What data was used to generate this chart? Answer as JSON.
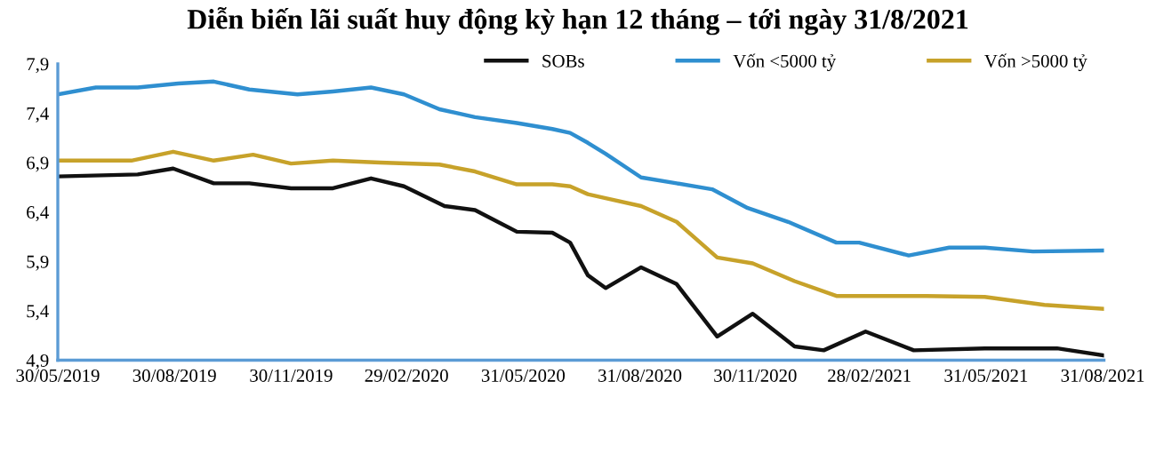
{
  "chart_data": {
    "type": "line",
    "title": "Diễn biến lãi suất huy động kỳ hạn 12 tháng – tới ngày 31/8/2021",
    "series": [
      {
        "name": "SOBs",
        "color": "#111111",
        "x": [
          "2019-05-30",
          "2019-08-01",
          "2019-08-29",
          "2019-09-30",
          "2019-10-28",
          "2019-11-30",
          "2020-01-02",
          "2020-02-01",
          "2020-02-27",
          "2020-03-30",
          "2020-04-23",
          "2020-05-26",
          "2020-06-23",
          "2020-07-07",
          "2020-07-21",
          "2020-08-04",
          "2020-09-01",
          "2020-09-29",
          "2020-10-31",
          "2020-11-28",
          "2020-12-31",
          "2021-01-23",
          "2021-02-25",
          "2021-04-04",
          "2021-05-30",
          "2021-07-26",
          "2021-08-31"
        ],
        "values": [
          6.76,
          6.78,
          6.84,
          6.69,
          6.69,
          6.64,
          6.64,
          6.74,
          6.66,
          6.46,
          6.42,
          6.2,
          6.19,
          6.09,
          5.76,
          5.63,
          5.84,
          5.67,
          5.14,
          5.37,
          5.04,
          5.0,
          5.19,
          5.0,
          5.02,
          5.02,
          4.95
        ]
      },
      {
        "name": "Vốn <5000 tỷ",
        "color": "#2f8fd0",
        "x": [
          "2019-05-30",
          "2019-06-29",
          "2019-08-01",
          "2019-09-02",
          "2019-09-30",
          "2019-10-28",
          "2019-12-05",
          "2020-01-02",
          "2020-02-01",
          "2020-02-27",
          "2020-03-26",
          "2020-04-23",
          "2020-05-26",
          "2020-06-23",
          "2020-07-07",
          "2020-07-21",
          "2020-08-04",
          "2020-09-01",
          "2020-09-29",
          "2020-10-27",
          "2020-11-24",
          "2020-12-26",
          "2021-02-02",
          "2021-02-20",
          "2021-03-31",
          "2021-05-02",
          "2021-05-30",
          "2021-07-07",
          "2021-08-31"
        ],
        "values": [
          7.59,
          7.66,
          7.66,
          7.7,
          7.72,
          7.64,
          7.59,
          7.62,
          7.66,
          7.59,
          7.44,
          7.36,
          7.3,
          7.24,
          7.2,
          7.1,
          6.99,
          6.75,
          6.69,
          6.63,
          6.44,
          6.3,
          6.09,
          6.09,
          5.96,
          6.04,
          6.04,
          6.0,
          6.01
        ]
      },
      {
        "name": "Vốn >5000 tỷ",
        "color": "#c7a22a",
        "x": [
          "2019-05-30",
          "2019-07-27",
          "2019-08-29",
          "2019-09-30",
          "2019-10-31",
          "2019-11-30",
          "2020-01-02",
          "2020-02-08",
          "2020-03-26",
          "2020-04-23",
          "2020-05-26",
          "2020-06-23",
          "2020-07-07",
          "2020-07-21",
          "2020-08-04",
          "2020-09-01",
          "2020-09-29",
          "2020-10-31",
          "2020-11-28",
          "2020-12-31",
          "2021-02-02",
          "2021-04-14",
          "2021-05-30",
          "2021-07-16",
          "2021-08-31"
        ],
        "values": [
          6.92,
          6.92,
          7.01,
          6.92,
          6.98,
          6.89,
          6.92,
          6.9,
          6.88,
          6.81,
          6.68,
          6.68,
          6.66,
          6.58,
          6.54,
          6.46,
          6.3,
          5.94,
          5.88,
          5.7,
          5.55,
          5.55,
          5.54,
          5.46,
          5.42
        ]
      }
    ],
    "xlim": [
      "2019-05-30",
      "2021-09-01"
    ],
    "xticks": [
      {
        "value": "2019-05-30",
        "label": "30/05/2019"
      },
      {
        "value": "2019-08-30",
        "label": "30/08/2019"
      },
      {
        "value": "2019-11-30",
        "label": "30/11/2019"
      },
      {
        "value": "2020-02-29",
        "label": "29/02/2020"
      },
      {
        "value": "2020-05-31",
        "label": "31/05/2020"
      },
      {
        "value": "2020-08-31",
        "label": "31/08/2020"
      },
      {
        "value": "2020-11-30",
        "label": "30/11/2020"
      },
      {
        "value": "2021-02-28",
        "label": "28/02/2021"
      },
      {
        "value": "2021-05-31",
        "label": "31/05/2021"
      },
      {
        "value": "2021-08-31",
        "label": "31/08/2021"
      }
    ],
    "ylim": [
      4.9,
      7.9
    ],
    "yticks": [
      {
        "value": 4.9,
        "label": "4,9"
      },
      {
        "value": 5.4,
        "label": "5,4"
      },
      {
        "value": 5.9,
        "label": "5,9"
      },
      {
        "value": 6.4,
        "label": "6,4"
      },
      {
        "value": 6.9,
        "label": "6,9"
      },
      {
        "value": 7.4,
        "label": "7,4"
      },
      {
        "value": 7.9,
        "label": "7,9"
      }
    ],
    "legend": "top right",
    "grid": false,
    "marker": "none",
    "line_style": "solid"
  }
}
